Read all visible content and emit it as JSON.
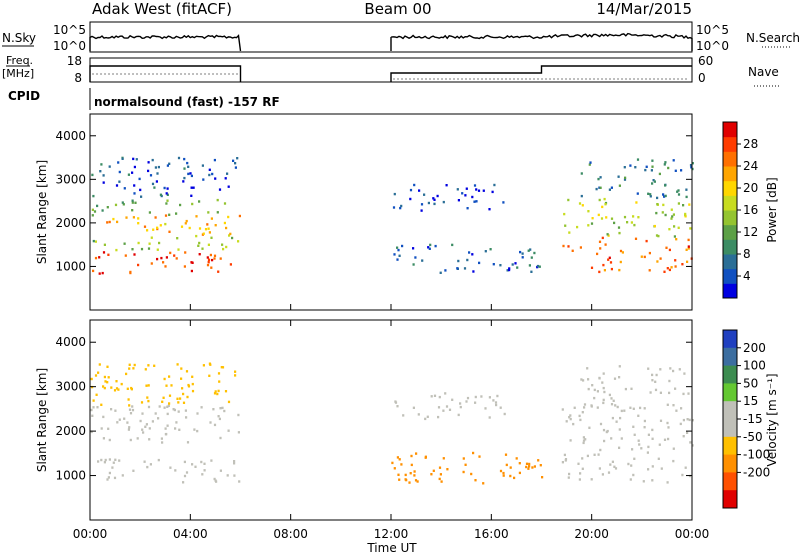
{
  "header": {
    "station": "Adak West (fitACF)",
    "beam": "Beam 00",
    "date": "14/Mar/2015"
  },
  "aux": {
    "nsky_label": "N.Sky",
    "nsearch_label": "N.Search",
    "freq_label_line1": "Freq.",
    "freq_label_line2": "[MHz]",
    "nave_label": "Nave",
    "cpid_label": "CPID",
    "cpid_text": "normalsound (fast) -157 RF",
    "nsky_ticks": [
      "10^5",
      "10^0"
    ],
    "nsearch_ticks": [
      "10^5",
      "10^0"
    ],
    "freq_ticks": [
      "18",
      "8"
    ],
    "nave_ticks": [
      "60",
      "0"
    ]
  },
  "chart_data": [
    {
      "type": "heatmap",
      "name": "power-panel",
      "ylabel": "Slant Range [km]",
      "xlabel": "",
      "xlim": [
        0,
        24
      ],
      "ylim": [
        0,
        4500
      ],
      "yticks": [
        1000,
        2000,
        3000,
        4000
      ],
      "colorbar": {
        "label": "Power [dB]",
        "ticks": [
          "4",
          "8",
          "12",
          "16",
          "20",
          "24",
          "28"
        ],
        "tick_values": [
          4,
          8,
          12,
          16,
          20,
          24,
          28
        ],
        "range": [
          0,
          32
        ],
        "colors": [
          "#0000e0",
          "#1050c0",
          "#2a6e96",
          "#3c8c64",
          "#5ca046",
          "#94c430",
          "#c8dc20",
          "#ffd700",
          "#ffa500",
          "#ff7000",
          "#ff3c00",
          "#e00000"
        ]
      },
      "echo_regions": [
        {
          "t0": 0.0,
          "t1": 6.0,
          "r0": 850,
          "r1": 1400,
          "value": 28
        },
        {
          "t0": 0.0,
          "t1": 6.0,
          "r0": 1400,
          "r1": 1750,
          "value": 14
        },
        {
          "t0": 0.0,
          "t1": 6.0,
          "r0": 1750,
          "r1": 2200,
          "value": 22
        },
        {
          "t0": 0.0,
          "t1": 6.0,
          "r0": 2200,
          "r1": 2600,
          "value": 12
        },
        {
          "t0": 0.0,
          "t1": 6.0,
          "r0": 2600,
          "r1": 3550,
          "value": 5
        },
        {
          "t0": 12.0,
          "t1": 18.0,
          "r0": 850,
          "r1": 1550,
          "value": 6
        },
        {
          "t0": 12.0,
          "t1": 16.5,
          "r0": 2300,
          "r1": 2900,
          "value": 3
        },
        {
          "t0": 18.8,
          "t1": 24.0,
          "r0": 850,
          "r1": 1700,
          "value": 26
        },
        {
          "t0": 18.8,
          "t1": 24.0,
          "r0": 1700,
          "r1": 2600,
          "value": 16
        },
        {
          "t0": 19.5,
          "t1": 24.0,
          "r0": 2600,
          "r1": 3500,
          "value": 8
        }
      ]
    },
    {
      "type": "heatmap",
      "name": "velocity-panel",
      "ylabel": "Slant Range [km]",
      "xlabel": "Time UT",
      "xlim": [
        0,
        24
      ],
      "ylim": [
        0,
        4500
      ],
      "yticks": [
        1000,
        2000,
        3000,
        4000
      ],
      "xticks": [
        "00:00",
        "04:00",
        "08:00",
        "12:00",
        "16:00",
        "20:00",
        "00:00"
      ],
      "xtick_values": [
        0,
        4,
        8,
        12,
        16,
        20,
        24
      ],
      "colorbar": {
        "label": "Velocity [m s⁻¹]",
        "ticks": [
          "200",
          "100",
          "50",
          "15",
          "-15",
          "-50",
          "-100",
          "-200"
        ],
        "colors": [
          "#2040c0",
          "#3c6ea0",
          "#3c8c50",
          "#64c832",
          "#c0c0b8",
          "#c0c0b8",
          "#ffc000",
          "#ff9000",
          "#ff5000",
          "#e00000"
        ]
      },
      "echo_regions": [
        {
          "t0": 0.0,
          "t1": 6.0,
          "r0": 850,
          "r1": 1400,
          "value": 0
        },
        {
          "t0": 0.0,
          "t1": 6.0,
          "r0": 1750,
          "r1": 2600,
          "value": 0
        },
        {
          "t0": 0.0,
          "t1": 6.0,
          "r0": 2600,
          "r1": 3550,
          "value": -20
        },
        {
          "t0": 12.0,
          "t1": 18.0,
          "r0": 850,
          "r1": 1550,
          "value": -60
        },
        {
          "t0": 12.0,
          "t1": 16.5,
          "r0": 2300,
          "r1": 2900,
          "value": 0
        },
        {
          "t0": 18.8,
          "t1": 24.0,
          "r0": 850,
          "r1": 2600,
          "value": 0
        },
        {
          "t0": 19.5,
          "t1": 24.0,
          "r0": 2600,
          "r1": 3500,
          "value": 0
        }
      ]
    }
  ]
}
